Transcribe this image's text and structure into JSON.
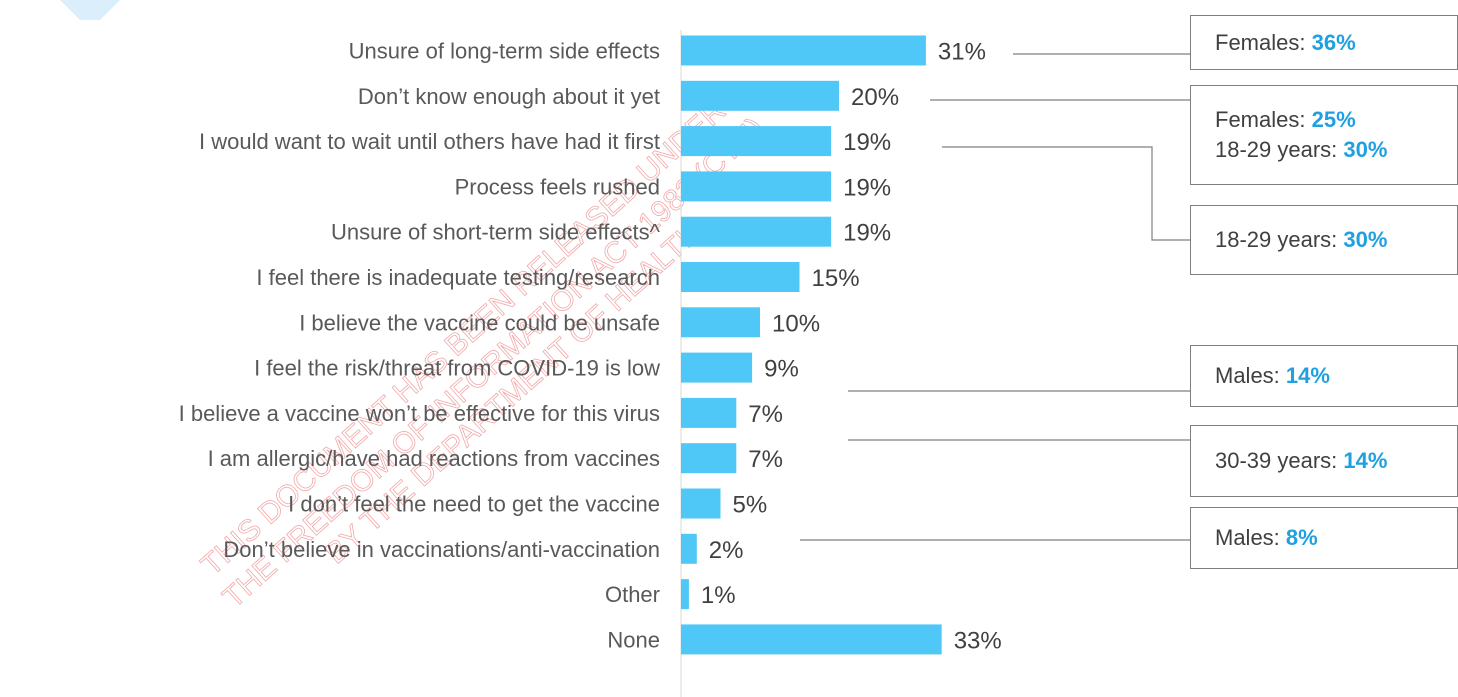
{
  "chart_data": {
    "type": "bar",
    "orientation": "horizontal",
    "categories": [
      "Unsure of long-term side effects",
      "Don’t know enough about it yet",
      "I would want to wait until others have had it first",
      "Process feels rushed",
      "Unsure of short-term side effects^",
      "I feel there is inadequate testing/research",
      "I believe the vaccine could be unsafe",
      "I feel the risk/threat from COVID-19 is low",
      "I believe  a vaccine  won’t be effective  for this virus",
      "I am allergic/have had reactions from vaccines",
      "I don’t feel the need to get the vaccine",
      "Don’t believe  in vaccinations/anti-vaccination",
      "Other",
      "None"
    ],
    "values": [
      31,
      20,
      19,
      19,
      19,
      15,
      10,
      9,
      7,
      7,
      5,
      2,
      1,
      33
    ],
    "value_labels": [
      "31%",
      "20%",
      "19%",
      "19%",
      "19%",
      "15%",
      "10%",
      "9%",
      "7%",
      "7%",
      "5%",
      "2%",
      "1%",
      "33%"
    ],
    "bar_color": "#4fc7f7",
    "grid": false,
    "callouts": [
      {
        "lines": [
          {
            "text": "Females: ",
            "highlight": "36%"
          }
        ]
      },
      {
        "lines": [
          {
            "text": "Females: ",
            "highlight": "25%"
          },
          {
            "text": "18-29 years: ",
            "highlight": "30%"
          }
        ]
      },
      {
        "lines": [
          {
            "text": "18-29 years: ",
            "highlight": "30%"
          }
        ]
      },
      {
        "lines": [
          {
            "text": "Males: ",
            "highlight": "14%"
          }
        ]
      },
      {
        "lines": [
          {
            "text": "30-39 years: ",
            "highlight": "14%"
          }
        ]
      },
      {
        "lines": [
          {
            "text": "Males: ",
            "highlight": "8%"
          }
        ]
      }
    ]
  },
  "watermark": {
    "lines": [
      "THIS DOCUMENT HAS BEEN RELEASED UNDER",
      "THE FREEDOM OF INFORMATION ACT 1982 (CTH)",
      "BY THE DEPARTMENT OF HEALTH"
    ]
  },
  "colors": {
    "bar": "#4fc7f7",
    "highlight": "#1fa0e0",
    "connector": "#7f7f7f",
    "text": "#595959"
  }
}
